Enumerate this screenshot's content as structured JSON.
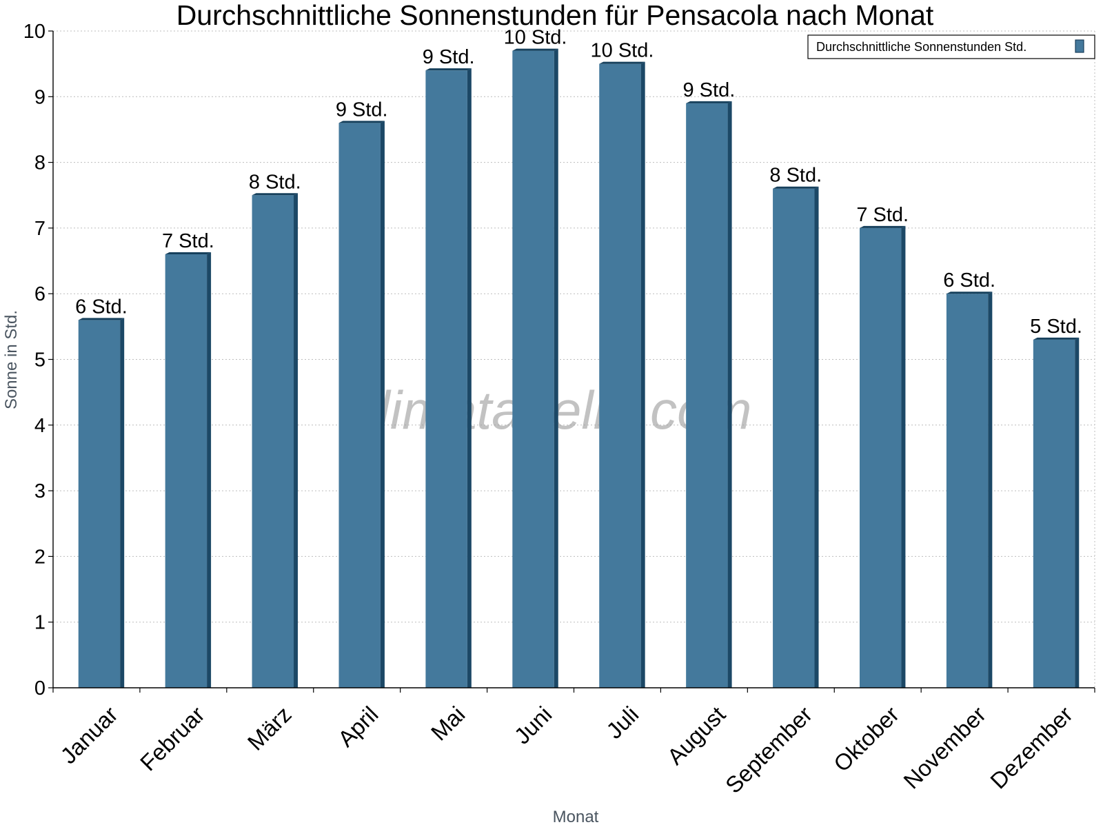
{
  "chart_data": {
    "type": "bar",
    "title": "Durchschnittliche Sonnenstunden für Pensacola nach Monat",
    "xlabel": "Monat",
    "ylabel": "Sonne in Std.",
    "ylim": [
      0,
      10
    ],
    "yticks": [
      "0",
      "1",
      "2",
      "3",
      "4",
      "5",
      "6",
      "7",
      "8",
      "9",
      "10"
    ],
    "grid": true,
    "legend_position": "top-right",
    "categories": [
      "Januar",
      "Februar",
      "März",
      "April",
      "Mai",
      "Juni",
      "Juli",
      "August",
      "September",
      "Oktober",
      "November",
      "Dezember"
    ],
    "series": [
      {
        "name": "Durchschnittliche Sonnenstunden Std.",
        "color": "#44799c",
        "values": [
          5.6,
          6.6,
          7.5,
          8.6,
          9.4,
          9.7,
          9.5,
          8.9,
          7.6,
          7.0,
          6.0,
          5.3
        ],
        "labels": [
          "6 Std.",
          "7 Std.",
          "8 Std.",
          "9 Std.",
          "9 Std.",
          "10 Std.",
          "10 Std.",
          "9 Std.",
          "8 Std.",
          "7 Std.",
          "6 Std.",
          "5 Std."
        ]
      }
    ],
    "watermark": "klimatabelle.com"
  }
}
